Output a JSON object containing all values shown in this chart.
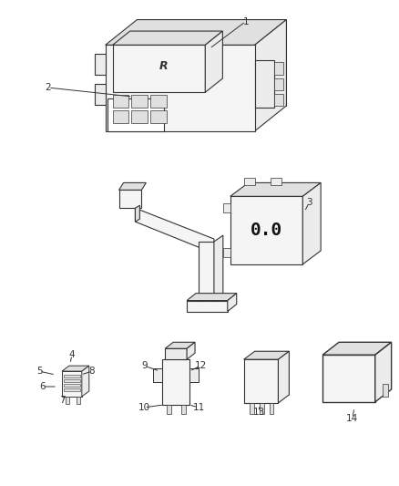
{
  "background_color": "#ffffff",
  "fig_width": 4.38,
  "fig_height": 5.33,
  "dpi": 100,
  "line_color": "#333333",
  "label_color": "#333333",
  "label_fontsize": 7.5,
  "face_color": "#f5f5f5",
  "dark_face": "#e0e0e0",
  "mid_face": "#ececec"
}
